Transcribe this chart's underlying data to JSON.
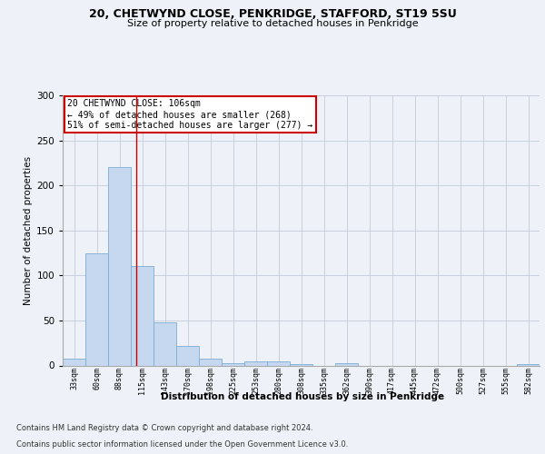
{
  "title1": "20, CHETWYND CLOSE, PENKRIDGE, STAFFORD, ST19 5SU",
  "title2": "Size of property relative to detached houses in Penkridge",
  "xlabel": "Distribution of detached houses by size in Penkridge",
  "ylabel": "Number of detached properties",
  "bar_color": "#c5d8f0",
  "bar_edge_color": "#7aadd4",
  "bin_labels": [
    "33sqm",
    "60sqm",
    "88sqm",
    "115sqm",
    "143sqm",
    "170sqm",
    "198sqm",
    "225sqm",
    "253sqm",
    "280sqm",
    "308sqm",
    "335sqm",
    "362sqm",
    "390sqm",
    "417sqm",
    "445sqm",
    "472sqm",
    "500sqm",
    "527sqm",
    "555sqm",
    "582sqm"
  ],
  "bar_heights": [
    8,
    125,
    220,
    110,
    48,
    22,
    8,
    3,
    5,
    5,
    2,
    0,
    3,
    0,
    0,
    0,
    0,
    0,
    0,
    0,
    2
  ],
  "ylim": [
    0,
    300
  ],
  "yticks": [
    0,
    50,
    100,
    150,
    200,
    250,
    300
  ],
  "property_line_x": 2.72,
  "annotation_text": "20 CHETWYND CLOSE: 106sqm\n← 49% of detached houses are smaller (268)\n51% of semi-detached houses are larger (277) →",
  "annotation_box_color": "#ffffff",
  "annotation_box_edge": "#cc0000",
  "red_line_color": "#cc0000",
  "footer1": "Contains HM Land Registry data © Crown copyright and database right 2024.",
  "footer2": "Contains public sector information licensed under the Open Government Licence v3.0.",
  "background_color": "#eef2f8",
  "grid_color": "#c8d0de"
}
